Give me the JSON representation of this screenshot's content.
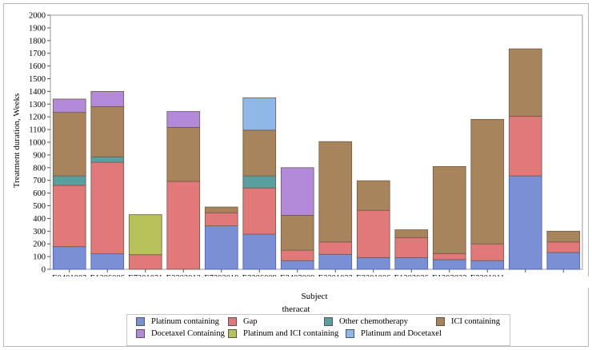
{
  "chart_data": {
    "type": "bar",
    "stacked": true,
    "ylabel": "Treatment duration, Weeks",
    "xlabel": "Subject",
    "ylim": [
      0,
      2000
    ],
    "ytick_step": 100,
    "grid": false,
    "legend_title": "theracat",
    "legend_position": "bottom",
    "categories": [
      "E0401003",
      "E1206006",
      "E7201031",
      "E2202012",
      "E7202019",
      "E3206009",
      "E3403009",
      "E2201023",
      "E2201006",
      "E1203026",
      "E1203023",
      "E3201011",
      "",
      ""
    ],
    "series": [
      {
        "name": "Platinum containing",
        "color": "#7b8fd4",
        "values": [
          178,
          122,
          0,
          0,
          342,
          276,
          68,
          118,
          92,
          92,
          76,
          68,
          735,
          132
        ]
      },
      {
        "name": "Gap",
        "color": "#e1787a",
        "values": [
          482,
          720,
          115,
          692,
          103,
          364,
          82,
          97,
          372,
          156,
          48,
          132,
          470,
          83
        ]
      },
      {
        "name": "Other chemotherapy",
        "color": "#5a9f9f",
        "values": [
          75,
          43,
          0,
          0,
          0,
          95,
          0,
          0,
          0,
          0,
          0,
          0,
          0,
          0
        ]
      },
      {
        "name": "ICI containing",
        "color": "#a8845d",
        "values": [
          500,
          395,
          0,
          425,
          45,
          360,
          275,
          790,
          233,
          63,
          685,
          980,
          530,
          85
        ]
      },
      {
        "name": "Docetaxel Containing",
        "color": "#b38ad9",
        "values": [
          105,
          120,
          0,
          125,
          0,
          0,
          375,
          0,
          0,
          0,
          0,
          0,
          0,
          0
        ]
      },
      {
        "name": "Platinum and ICI containing",
        "color": "#b7c25a",
        "values": [
          0,
          0,
          315,
          0,
          0,
          0,
          0,
          0,
          0,
          0,
          0,
          0,
          0,
          0
        ]
      },
      {
        "name": "Platinum and Docetaxel",
        "color": "#8fb8e8",
        "values": [
          0,
          0,
          0,
          0,
          0,
          255,
          0,
          0,
          0,
          0,
          0,
          0,
          0,
          0
        ]
      }
    ]
  }
}
